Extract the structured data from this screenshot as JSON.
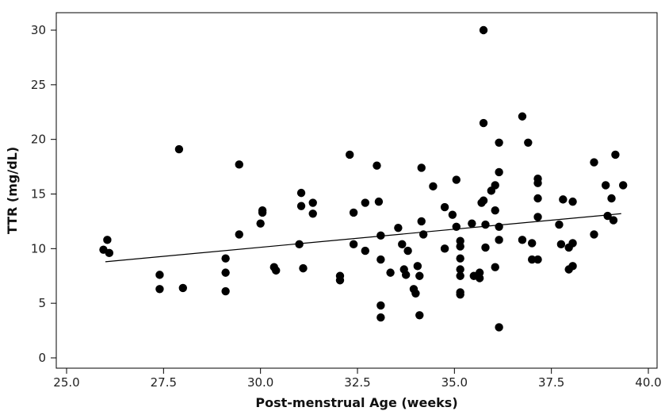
{
  "chart_data": {
    "type": "scatter",
    "title": "",
    "xlabel": "Post-menstrual Age (weeks)",
    "ylabel": "TTR (mg/dL)",
    "xlim": [
      25.0,
      40.0
    ],
    "ylim": [
      0,
      31
    ],
    "xticks": [
      25.0,
      27.5,
      30.0,
      32.5,
      35.0,
      37.5,
      40.0
    ],
    "xtick_labels": [
      "25.0",
      "27.5",
      "30.0",
      "32.5",
      "35.0",
      "37.5",
      "40.0"
    ],
    "yticks": [
      0,
      5,
      10,
      15,
      20,
      25,
      30
    ],
    "ytick_labels": [
      "0",
      "5",
      "10",
      "15",
      "20",
      "25",
      "30"
    ],
    "grid": false,
    "legend": "none",
    "point_color": "#000000",
    "line_color": "#000000",
    "fit_line": {
      "x": [
        26.0,
        39.3
      ],
      "y": [
        8.8,
        13.2
      ]
    },
    "points": [
      [
        25.95,
        9.9
      ],
      [
        26.05,
        10.8
      ],
      [
        26.1,
        9.6
      ],
      [
        27.4,
        7.6
      ],
      [
        27.4,
        6.3
      ],
      [
        27.9,
        19.1
      ],
      [
        28.0,
        6.4
      ],
      [
        29.1,
        9.1
      ],
      [
        29.1,
        7.8
      ],
      [
        29.1,
        6.1
      ],
      [
        29.45,
        17.7
      ],
      [
        29.45,
        11.3
      ],
      [
        30.0,
        12.3
      ],
      [
        30.05,
        13.5
      ],
      [
        30.05,
        13.3
      ],
      [
        30.35,
        8.3
      ],
      [
        30.4,
        8.0
      ],
      [
        31.0,
        10.4
      ],
      [
        31.05,
        15.1
      ],
      [
        31.05,
        13.9
      ],
      [
        31.1,
        8.2
      ],
      [
        31.35,
        14.2
      ],
      [
        31.35,
        13.2
      ],
      [
        32.05,
        7.5
      ],
      [
        32.05,
        7.1
      ],
      [
        32.3,
        18.6
      ],
      [
        32.4,
        13.3
      ],
      [
        32.4,
        10.4
      ],
      [
        32.7,
        14.2
      ],
      [
        32.7,
        9.8
      ],
      [
        33.0,
        17.6
      ],
      [
        33.05,
        14.3
      ],
      [
        33.1,
        11.2
      ],
      [
        33.1,
        9.0
      ],
      [
        33.1,
        4.8
      ],
      [
        33.1,
        3.7
      ],
      [
        33.35,
        7.8
      ],
      [
        33.55,
        11.9
      ],
      [
        33.65,
        10.4
      ],
      [
        33.7,
        8.1
      ],
      [
        33.75,
        7.6
      ],
      [
        33.8,
        9.8
      ],
      [
        33.95,
        6.3
      ],
      [
        34.0,
        5.9
      ],
      [
        34.05,
        8.4
      ],
      [
        34.1,
        7.5
      ],
      [
        34.1,
        3.9
      ],
      [
        34.15,
        17.4
      ],
      [
        34.15,
        12.5
      ],
      [
        34.2,
        11.3
      ],
      [
        34.45,
        15.7
      ],
      [
        34.75,
        13.8
      ],
      [
        34.75,
        10.0
      ],
      [
        34.95,
        13.1
      ],
      [
        35.05,
        16.3
      ],
      [
        35.05,
        12.0
      ],
      [
        35.15,
        10.7
      ],
      [
        35.15,
        10.2
      ],
      [
        35.15,
        9.1
      ],
      [
        35.15,
        8.1
      ],
      [
        35.15,
        7.5
      ],
      [
        35.15,
        6.0
      ],
      [
        35.15,
        5.8
      ],
      [
        35.45,
        12.3
      ],
      [
        35.5,
        7.5
      ],
      [
        35.65,
        7.8
      ],
      [
        35.65,
        7.3
      ],
      [
        35.7,
        14.2
      ],
      [
        35.75,
        30.0
      ],
      [
        35.75,
        21.5
      ],
      [
        35.75,
        14.4
      ],
      [
        35.8,
        10.1
      ],
      [
        35.8,
        12.2
      ],
      [
        35.95,
        15.3
      ],
      [
        36.05,
        15.8
      ],
      [
        36.05,
        13.5
      ],
      [
        36.05,
        8.3
      ],
      [
        36.15,
        19.7
      ],
      [
        36.15,
        17.0
      ],
      [
        36.15,
        12.0
      ],
      [
        36.15,
        10.8
      ],
      [
        36.15,
        2.8
      ],
      [
        36.75,
        22.1
      ],
      [
        36.75,
        10.8
      ],
      [
        36.9,
        19.7
      ],
      [
        37.0,
        10.5
      ],
      [
        37.0,
        9.0
      ],
      [
        37.15,
        16.4
      ],
      [
        37.15,
        16.0
      ],
      [
        37.15,
        14.6
      ],
      [
        37.15,
        12.9
      ],
      [
        37.15,
        9.0
      ],
      [
        37.7,
        12.2
      ],
      [
        37.75,
        10.4
      ],
      [
        37.8,
        14.5
      ],
      [
        37.95,
        10.1
      ],
      [
        37.95,
        8.1
      ],
      [
        38.05,
        14.3
      ],
      [
        38.05,
        10.5
      ],
      [
        38.05,
        8.4
      ],
      [
        38.6,
        17.9
      ],
      [
        38.6,
        11.3
      ],
      [
        38.9,
        15.8
      ],
      [
        38.95,
        13.0
      ],
      [
        39.05,
        14.6
      ],
      [
        39.1,
        12.6
      ],
      [
        39.15,
        18.6
      ],
      [
        39.35,
        15.8
      ]
    ]
  }
}
